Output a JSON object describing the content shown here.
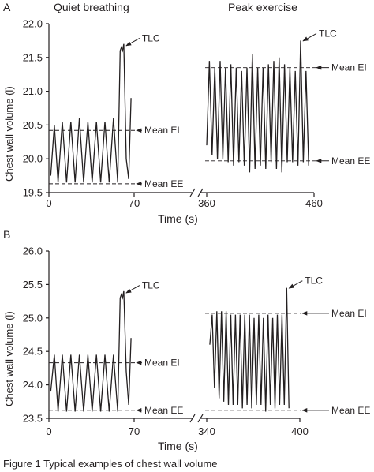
{
  "figure": {
    "titles": [
      "Quiet breathing",
      "Peak exercise"
    ],
    "caption": "Figure 1  Typical examples of chest wall volume"
  },
  "chart_data": [
    {
      "panel": "A",
      "type": "line",
      "ylabel": "Chest wall volume (l)",
      "xlabel": "Time (s)",
      "ylim": [
        19.5,
        22.0
      ],
      "yticks": [
        19.5,
        20.0,
        20.5,
        21.0,
        21.5,
        22.0
      ],
      "ytick_labels": [
        "19.5",
        "20.0",
        "20.5",
        "21.0",
        "21.5",
        "22.0"
      ],
      "segments": [
        {
          "title": "Quiet breathing",
          "xlim": [
            0,
            70
          ],
          "xticks": [
            0,
            70
          ],
          "xtick_labels": [
            "0",
            "70"
          ],
          "x": [
            1.5,
            4.5,
            7.5,
            11,
            14.5,
            18,
            21.5,
            25,
            28.5,
            32,
            35.5,
            39,
            42.5,
            46,
            49.5,
            53,
            56.5,
            58.5,
            59.5,
            60.5,
            61.5,
            63.5,
            65.5,
            67.5
          ],
          "y": [
            19.75,
            20.5,
            19.65,
            20.55,
            19.65,
            20.55,
            19.65,
            20.6,
            19.65,
            20.55,
            19.65,
            20.55,
            19.65,
            20.55,
            19.65,
            20.6,
            19.65,
            21.6,
            21.65,
            21.6,
            21.7,
            20.0,
            19.7,
            20.9
          ],
          "lines": [
            {
              "label": "Mean EI",
              "y": 20.42
            },
            {
              "label": "Mean EE",
              "y": 19.63
            }
          ],
          "annotations": [
            {
              "label": "TLC",
              "x": 61.5,
              "y": 21.68
            }
          ]
        },
        {
          "title": "Peak exercise",
          "xlim": [
            360,
            460
          ],
          "xticks": [
            360,
            460
          ],
          "xtick_labels": [
            "360",
            "460"
          ],
          "x": [
            360,
            362.5,
            365,
            367.5,
            370,
            372.5,
            375,
            377.5,
            380,
            382.5,
            385,
            387.5,
            390,
            392.5,
            395,
            397.5,
            400,
            402.5,
            405,
            407.5,
            410,
            412.5,
            415,
            417.5,
            420,
            422.5,
            425,
            427.5,
            430,
            432.5,
            435,
            437.5,
            440,
            442.5,
            445,
            447.5,
            450,
            452.5,
            455
          ],
          "y": [
            20.2,
            21.45,
            20.05,
            21.35,
            20.0,
            21.45,
            20.0,
            21.35,
            19.95,
            21.4,
            19.9,
            21.35,
            19.95,
            21.3,
            19.9,
            21.35,
            19.8,
            21.55,
            19.85,
            21.35,
            19.9,
            21.35,
            19.85,
            21.4,
            19.95,
            21.45,
            19.85,
            21.5,
            19.8,
            21.4,
            19.95,
            21.35,
            19.95,
            21.3,
            19.9,
            21.75,
            19.95,
            21.3,
            19.9
          ],
          "lines": [
            {
              "label": "Mean EI",
              "y": 21.35
            },
            {
              "label": "Mean EE",
              "y": 19.97
            }
          ],
          "annotations": [
            {
              "label": "TLC",
              "x": 447.5,
              "y": 21.75
            }
          ]
        }
      ]
    },
    {
      "panel": "B",
      "type": "line",
      "ylabel": "Chest wall volume (l)",
      "xlabel": "Time (s)",
      "ylim": [
        23.5,
        26.0
      ],
      "yticks": [
        23.5,
        24.0,
        24.5,
        25.0,
        25.5,
        26.0
      ],
      "ytick_labels": [
        "23.5",
        "24.0",
        "24.5",
        "25.0",
        "25.5",
        "26.0"
      ],
      "segments": [
        {
          "title": "Quiet breathing",
          "xlim": [
            0,
            70
          ],
          "xticks": [
            0,
            70
          ],
          "xtick_labels": [
            "0",
            "70"
          ],
          "x": [
            1.5,
            4.5,
            7.5,
            11,
            14.5,
            18,
            21.5,
            25,
            28.5,
            32,
            35.5,
            39,
            42.5,
            46,
            49.5,
            53,
            56.5,
            58.5,
            59.5,
            60.5,
            61.5,
            63.5,
            65.5,
            67.5
          ],
          "y": [
            23.9,
            24.45,
            23.6,
            24.45,
            23.6,
            24.45,
            23.6,
            24.45,
            23.6,
            24.45,
            23.6,
            24.45,
            23.6,
            24.45,
            23.6,
            24.45,
            23.6,
            25.3,
            25.35,
            25.3,
            25.4,
            24.2,
            23.7,
            24.7
          ],
          "lines": [
            {
              "label": "Mean EI",
              "y": 24.33
            },
            {
              "label": "Mean EE",
              "y": 23.62
            }
          ],
          "annotations": [
            {
              "label": "TLC",
              "x": 61.5,
              "y": 25.38
            }
          ]
        },
        {
          "title": "",
          "xlim": [
            340,
            400
          ],
          "xticks": [
            340,
            400
          ],
          "xtick_labels": [
            "340",
            "400"
          ],
          "x": [
            342,
            343.5,
            345,
            346.5,
            348,
            349.5,
            351,
            352.5,
            354,
            355.5,
            357,
            358.5,
            360,
            361.5,
            363,
            364.5,
            366,
            367.5,
            369,
            370.5,
            372,
            373.5,
            375,
            376.5,
            378,
            379.5,
            381,
            382.5,
            384,
            385.5,
            387,
            388.5,
            390,
            391.5,
            393
          ],
          "y": [
            24.6,
            25.05,
            23.95,
            25.1,
            23.8,
            25.1,
            23.75,
            25.1,
            23.7,
            25.05,
            23.7,
            25.05,
            23.7,
            25.05,
            23.65,
            25.05,
            23.7,
            25.05,
            23.65,
            25.0,
            23.7,
            25.05,
            23.7,
            25.0,
            23.6,
            25.05,
            23.7,
            25.0,
            23.65,
            25.05,
            23.7,
            25.05,
            23.7,
            25.45,
            23.65
          ],
          "lines": [
            {
              "label": "Mean EI",
              "y": 25.07
            },
            {
              "label": "Mean EE",
              "y": 23.62
            }
          ],
          "annotations": [
            {
              "label": "TLC",
              "x": 391.5,
              "y": 25.45
            }
          ]
        }
      ]
    }
  ]
}
